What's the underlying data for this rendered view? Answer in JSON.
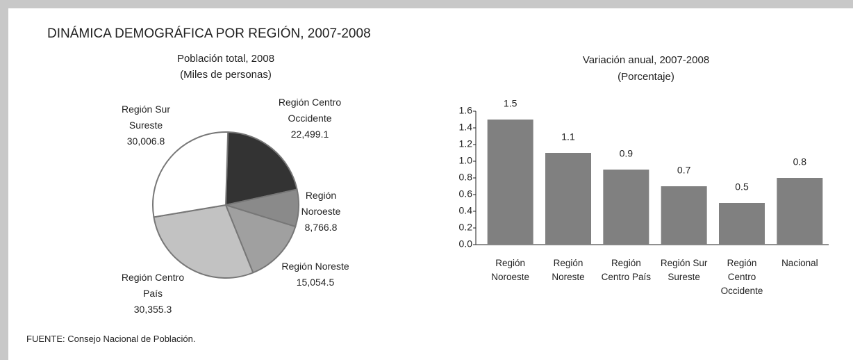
{
  "title": "DINÁMICA DEMOGRÁFICA POR REGIÓN, 2007-2008",
  "source": "FUENTE: Consejo Nacional de Población.",
  "chart_data": [
    {
      "type": "pie",
      "title": "Población total, 2008",
      "subtitle": "(Miles de personas)",
      "categories": [
        "Región Centro Occidente",
        "Región Noroeste",
        "Región Noreste",
        "Región Centro País",
        "Región Sur Sureste"
      ],
      "values": [
        22499.1,
        8766.8,
        15054.5,
        30355.3,
        30006.8
      ],
      "value_labels": [
        "22,499.1",
        "8,766.8",
        "15,054.5",
        "30,355.3",
        "30,006.8"
      ],
      "colors": [
        "#333333",
        "#8a8a8a",
        "#a0a0a0",
        "#c2c2c2",
        "#ffffff"
      ]
    },
    {
      "type": "bar",
      "title": "Variación anual, 2007-2008",
      "subtitle": "(Porcentaje)",
      "categories": [
        "Región Noroeste",
        "Región Noreste",
        "Región Centro País",
        "Región Sur Sureste",
        "Región Centro Occidente",
        "Nacional"
      ],
      "values": [
        1.5,
        1.1,
        0.9,
        0.7,
        0.5,
        0.8
      ],
      "color": "#808080",
      "ylim": [
        0,
        1.6
      ],
      "yticks": [
        {
          "value": 0,
          "label": "0.0"
        },
        0.2,
        0.4,
        0.6,
        0.8,
        {
          "value": 1,
          "label": "1.0"
        },
        1.2,
        1.4,
        1.6
      ],
      "grid": false
    }
  ]
}
